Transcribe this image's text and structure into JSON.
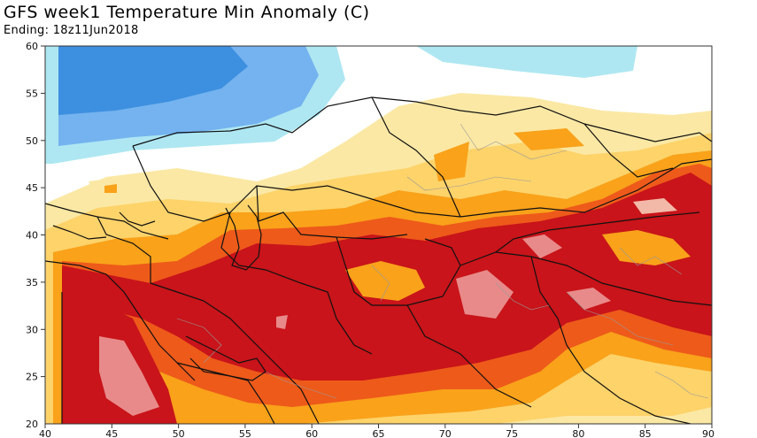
{
  "title": "GFS week1 Temperature Min Anomaly (C)",
  "subtitle": "Ending: 18z11Jun2018",
  "axes": {
    "lon_ticks": [
      "40",
      "45",
      "50",
      "55",
      "60",
      "65",
      "70",
      "75",
      "80",
      "85",
      "90"
    ],
    "lat_ticks": [
      "60",
      "55",
      "50",
      "45",
      "40",
      "35",
      "30",
      "25",
      "20"
    ],
    "lon_range": [
      40,
      90
    ],
    "lat_range": [
      20,
      60
    ]
  },
  "colors": {
    "dark_blue": "#3d8fe0",
    "mid_blue": "#74b3ef",
    "light_blue": "#aee7f2",
    "light_yellow": "#fbe8a4",
    "yellow": "#fdd36a",
    "orange": "#f9a21a",
    "red_orange": "#ee5a1a",
    "red": "#c8141a",
    "pink": "#e88a8a"
  }
}
